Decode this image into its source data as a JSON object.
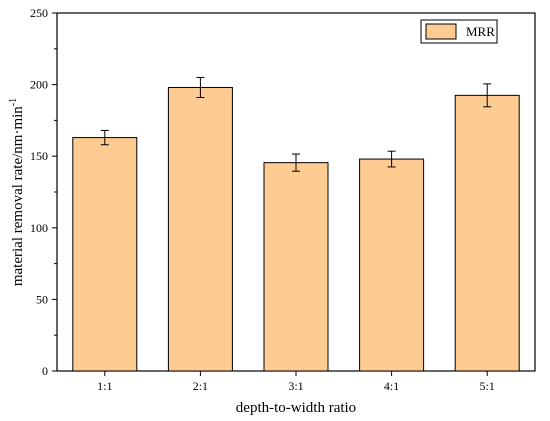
{
  "chart_data": {
    "type": "bar",
    "categories": [
      "1:1",
      "2:1",
      "3:1",
      "4:1",
      "5:1"
    ],
    "series": [
      {
        "name": "MRR",
        "values": [
          163,
          198,
          145.5,
          148,
          192.5
        ],
        "errors": [
          5,
          7,
          6,
          5.5,
          8
        ],
        "color": "#fecb92"
      }
    ],
    "xlabel": "depth-to-width ratio",
    "ylabel": "material removal rate/nm·min",
    "ylabel_superscript": "-1",
    "ylim": [
      0,
      250
    ],
    "yticks": [
      "0",
      "50",
      "100",
      "150",
      "200",
      "250"
    ],
    "legend_position": "top-right",
    "grid": false
  }
}
